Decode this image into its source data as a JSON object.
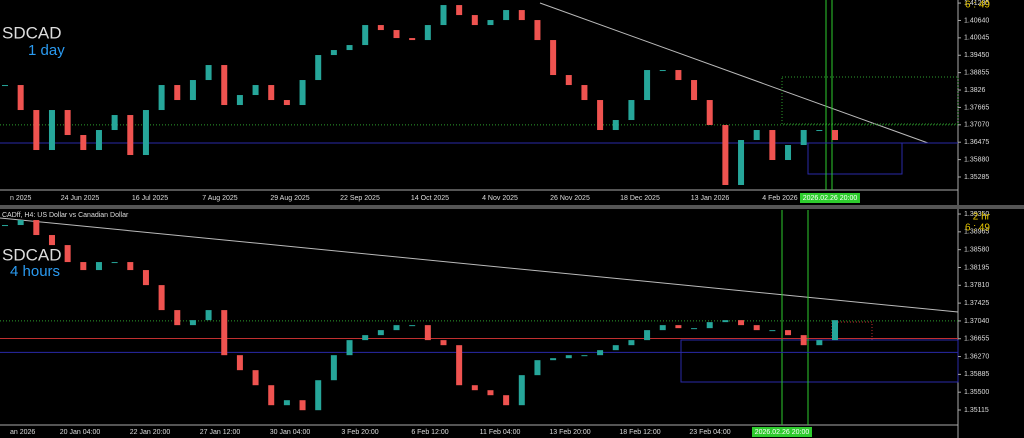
{
  "chart_data": [
    {
      "type": "candlestick",
      "symbol": "SDCAD",
      "timeframe": "1 day",
      "timer": "6 : 49",
      "colors": {
        "up": "#26a69a",
        "down": "#ef5350"
      },
      "values": [
        1.38431,
        1.37576,
        1.36208,
        1.37576,
        1.36721,
        1.36208,
        1.36892,
        1.37405,
        1.36037,
        1.37576,
        1.38431,
        1.37918,
        1.38602,
        1.39115,
        1.37747,
        1.38089,
        1.38431,
        1.37918,
        1.37747,
        1.38602,
        1.39457,
        1.39628,
        1.39799,
        1.40483,
        1.40312,
        1.40038,
        1.3997,
        1.40483,
        1.41167,
        1.40825,
        1.40483,
        1.40654,
        1.40996,
        1.40654,
        1.3997,
        1.38773,
        1.38431,
        1.37918,
        1.36892,
        1.37234,
        1.37918,
        1.38944,
        1.38944,
        1.38602,
        1.37918,
        1.37063,
        1.35011,
        1.3655,
        1.36892,
        1.35866,
        1.36379,
        1.36892,
        1.36892,
        1.3655
      ],
      "levels": [
        {
          "value": 1.3707,
          "color": "#2e9e2e",
          "dash": true
        },
        {
          "value": 1.3645,
          "color": "#2a2aa8",
          "dash": false
        }
      ],
      "ylim": [
        1.3484,
        1.4134
      ],
      "yticks": [
        1.41235,
        {
          "value": 1.4064,
          "label": "1.40640"
        },
        1.40045,
        {
          "value": 1.3945,
          "label": "1.39450"
        },
        1.38855,
        1.3826,
        1.37665,
        {
          "value": 1.3707,
          "label": "1.37070"
        },
        1.36475,
        {
          "value": 1.3588,
          "label": "1.35880"
        },
        1.35285
      ],
      "date_labels": [
        "n 2025",
        "24 Jun 2025",
        "16 Jul 2025",
        "7 Aug 2025",
        "29 Aug 2025",
        "22 Sep 2025",
        "14 Oct 2025",
        "4 Nov 2025",
        "26 Nov 2025",
        "18 Dec 2025",
        "13 Jan 2026",
        "4 Feb 2026"
      ],
      "cursor_label": "2026.02.26 20:00"
    },
    {
      "type": "candlestick",
      "header": "CADff, H4:  US Dollar vs Canadian Dollar",
      "symbol": "SDCAD",
      "timeframe": "4 hours",
      "bar_timer": "2 hr",
      "timer": "6 : 49",
      "colors": {
        "up": "#26a69a",
        "down": "#ef5350"
      },
      "values": [
        1.39112,
        1.3922,
        1.38896,
        1.38679,
        1.38312,
        1.38139,
        1.38312,
        1.38312,
        1.38139,
        1.37814,
        1.37274,
        1.36949,
        1.37057,
        1.37274,
        1.363,
        1.35976,
        1.35651,
        1.35219,
        1.35327,
        1.35111,
        1.35759,
        1.363,
        1.36625,
        1.36733,
        1.36841,
        1.36949,
        1.36949,
        1.36625,
        1.36516,
        1.35651,
        1.35543,
        1.35435,
        1.35219,
        1.35868,
        1.36192,
        1.36235,
        1.363,
        1.363,
        1.36408,
        1.36516,
        1.36625,
        1.36841,
        1.36949,
        1.36884,
        1.36884,
        1.37014,
        1.37057,
        1.36949,
        1.36841,
        1.36841,
        1.36733,
        1.36516,
        1.36625,
        1.37057
      ],
      "levels": [
        {
          "value": 1.3704,
          "color": "#2e9e2e",
          "dash": true
        },
        {
          "value": 1.3666,
          "color": "#c03030",
          "dash": false
        },
        {
          "value": 1.3636,
          "color": "#2a2aa8",
          "dash": false
        }
      ],
      "ylim": [
        1.34791,
        1.39437
      ],
      "yticks": [
        {
          "value": 1.3935,
          "label": "1.39350"
        },
        1.38965,
        {
          "value": 1.3858,
          "label": "1.38580"
        },
        1.38195,
        {
          "value": 1.3781,
          "label": "1.37810"
        },
        1.37425,
        {
          "value": 1.3704,
          "label": "1.37040"
        },
        1.36655,
        {
          "value": 1.3627,
          "label": "1.36270"
        },
        1.35885,
        {
          "value": 1.355,
          "label": "1.35500"
        },
        1.35115
      ],
      "date_labels": [
        "an 2026",
        "20 Jan 04:00",
        "22 Jan 20:00",
        "27 Jan 12:00",
        "30 Jan 04:00",
        "3 Feb 20:00",
        "6 Feb 12:00",
        "11 Feb 04:00",
        "13 Feb 20:00",
        "18 Feb 12:00",
        "23 Feb 04:00"
      ],
      "cursor_label": "2026.02.26 20:00"
    }
  ]
}
